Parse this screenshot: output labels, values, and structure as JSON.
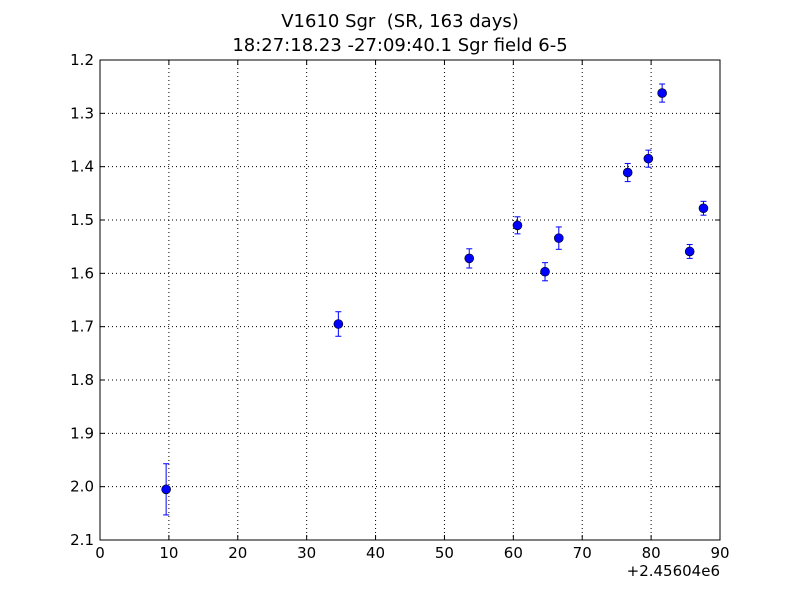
{
  "chart_data": {
    "type": "scatter",
    "title": "V1610 Sgr  (SR, 163 days)",
    "subtitle": "18:27:18.23 -27:09:40.1 Sgr field 6-5",
    "xlabel": "",
    "ylabel": "",
    "x_offset_label": "+2.45604e6",
    "xlim": [
      0,
      90
    ],
    "ylim": [
      1.2,
      2.1
    ],
    "y_inverted": true,
    "xticks": [
      0,
      10,
      20,
      30,
      40,
      50,
      60,
      70,
      80,
      90
    ],
    "xtick_labels": [
      "0",
      "10",
      "20",
      "30",
      "40",
      "50",
      "60",
      "70",
      "80",
      "90"
    ],
    "yticks": [
      1.2,
      1.3,
      1.4,
      1.5,
      1.6,
      1.7,
      1.8,
      1.9,
      2.0,
      2.1
    ],
    "ytick_labels": [
      "1.2",
      "1.3",
      "1.4",
      "1.5",
      "1.6",
      "1.7",
      "1.8",
      "1.9",
      "2.0",
      "2.1"
    ],
    "grid": true,
    "marker_color": "#0000ff",
    "points": [
      {
        "x": 9.6,
        "y": 2.005,
        "err": 0.048
      },
      {
        "x": 34.6,
        "y": 1.695,
        "err": 0.023
      },
      {
        "x": 53.6,
        "y": 1.572,
        "err": 0.018
      },
      {
        "x": 60.6,
        "y": 1.51,
        "err": 0.016
      },
      {
        "x": 64.6,
        "y": 1.597,
        "err": 0.017
      },
      {
        "x": 66.6,
        "y": 1.534,
        "err": 0.021
      },
      {
        "x": 76.6,
        "y": 1.411,
        "err": 0.017
      },
      {
        "x": 79.6,
        "y": 1.385,
        "err": 0.016
      },
      {
        "x": 81.6,
        "y": 1.262,
        "err": 0.017
      },
      {
        "x": 85.6,
        "y": 1.559,
        "err": 0.013
      },
      {
        "x": 87.6,
        "y": 1.478,
        "err": 0.013
      }
    ]
  }
}
